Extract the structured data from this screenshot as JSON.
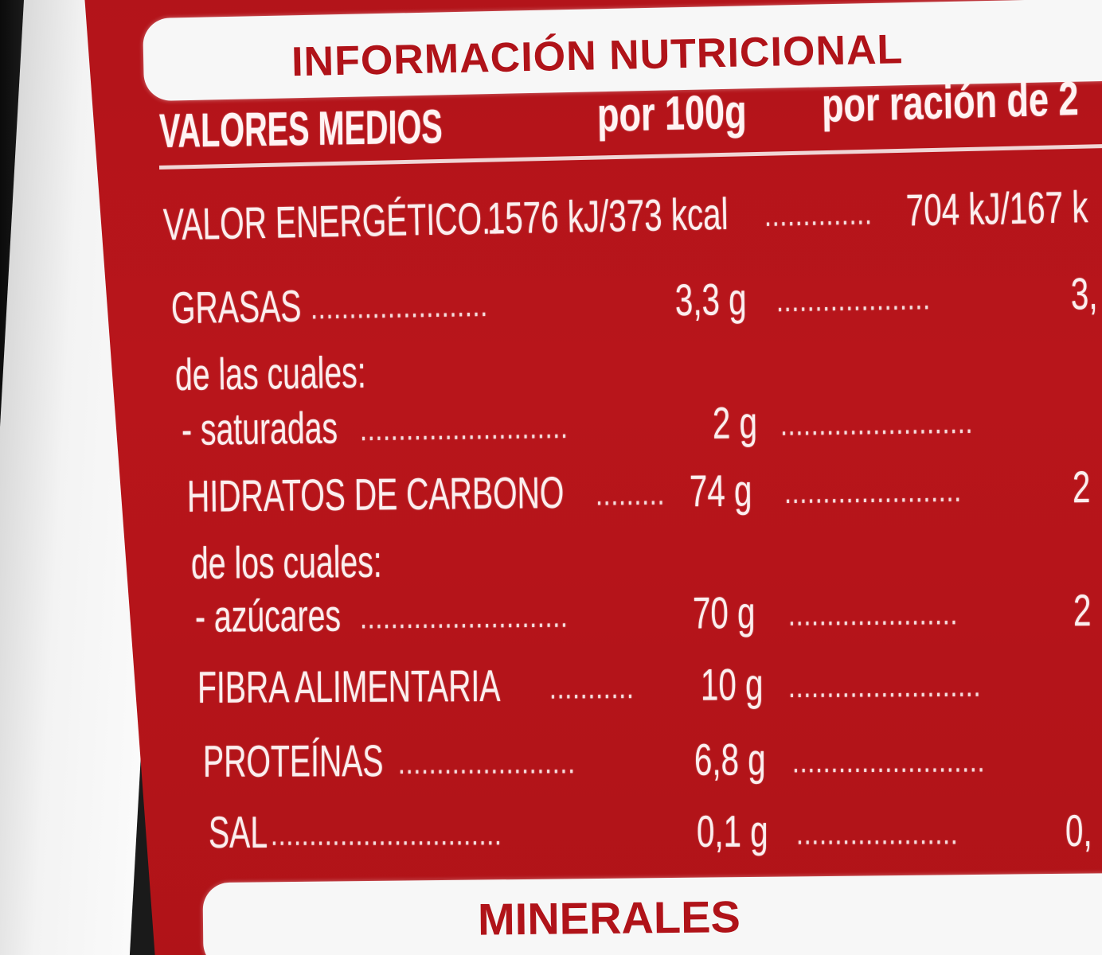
{
  "label": {
    "title": "INFORMACIÓN NUTRICIONAL",
    "header": {
      "label": "VALORES MEDIOS",
      "per100": "por 100g",
      "perServing": "por ración de 2"
    },
    "rows": [
      {
        "label": "VALOR ENERGÉTICO..",
        "value100": "1576 kJ/373 kcal",
        "valueServing": "704 kJ/167 k"
      },
      {
        "label": "GRASAS",
        "value100": "3,3 g",
        "valueServing": "3,"
      },
      {
        "label": "de las cuales:",
        "value100": "",
        "valueServing": ""
      },
      {
        "label": "- saturadas",
        "value100": "2 g",
        "valueServing": ""
      },
      {
        "label": "HIDRATOS DE CARBONO",
        "value100": "74 g",
        "valueServing": "2"
      },
      {
        "label": "de los cuales:",
        "value100": "",
        "valueServing": ""
      },
      {
        "label": "- azúcares",
        "value100": "70 g",
        "valueServing": "2"
      },
      {
        "label": "FIBRA ALIMENTARIA",
        "value100": "10 g",
        "valueServing": ""
      },
      {
        "label": "PROTEÍNAS",
        "value100": "6,8 g",
        "valueServing": ""
      },
      {
        "label": "SAL",
        "value100": "0,1 g",
        "valueServing": "0,"
      }
    ],
    "section2Title": "MINERALES"
  },
  "colors": {
    "labelRed": "#b3141a",
    "barWhite": "#f7f7f7",
    "text": "#fbeeee"
  }
}
